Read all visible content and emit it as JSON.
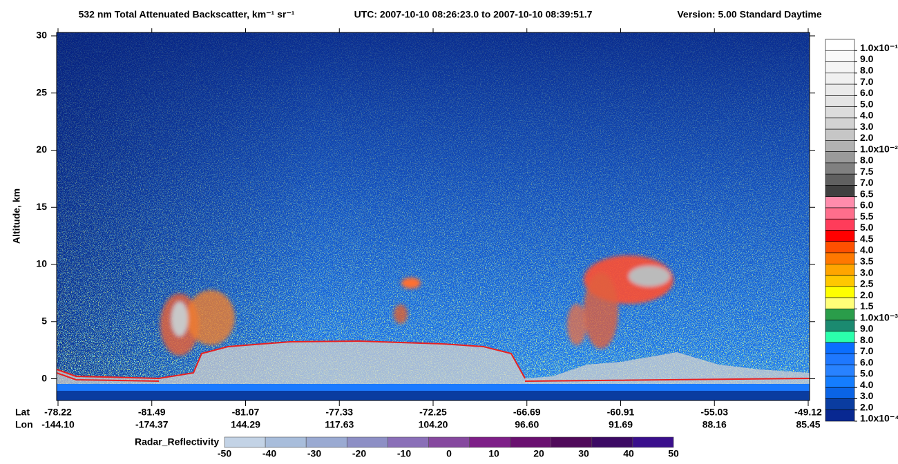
{
  "chart_data": {
    "type": "curtain",
    "title": "532 nm Total Attenuated Backscatter, km⁻¹ sr⁻¹",
    "time_range": "UTC:  2007-10-10 08:26:23.0  to  2007-10-10 08:39:51.7",
    "version": "Version: 5.00  Standard  Daytime",
    "ylabel": "Altitude, km",
    "ylim": [
      -1.9,
      30.3
    ],
    "yticks": [
      0,
      5,
      10,
      15,
      20,
      25,
      30
    ],
    "lat_label": "Lat",
    "lon_label": "Lon",
    "lat": [
      "-78.22",
      "-81.49",
      "-81.07",
      "-77.33",
      "-72.25",
      "-66.69",
      "-60.91",
      "-55.03",
      "-49.12"
    ],
    "lon": [
      "-144.10",
      "-174.37",
      "144.29",
      "117.63",
      "104.20",
      "96.60",
      "91.69",
      "88.16",
      "85.45"
    ],
    "colorbar": {
      "labels": [
        "1.0x10⁻¹",
        "9.0",
        "8.0",
        "7.0",
        "6.0",
        "5.0",
        "4.0",
        "3.0",
        "2.0",
        "1.0x10⁻²",
        "8.0",
        "7.5",
        "7.0",
        "6.5",
        "6.0",
        "5.5",
        "5.0",
        "4.5",
        "4.0",
        "3.5",
        "3.0",
        "2.5",
        "2.0",
        "1.5",
        "1.0x10⁻³",
        "9.0",
        "8.0",
        "7.0",
        "6.0",
        "5.0",
        "4.0",
        "3.0",
        "2.0",
        "1.0x10⁻⁴"
      ],
      "colors": [
        "#ffffff",
        "#fafafa",
        "#f5f5f5",
        "#f0f0f0",
        "#eaeaea",
        "#e4e4e4",
        "#dcdcdc",
        "#d2d2d2",
        "#c6c6c6",
        "#b2b2b2",
        "#9a9a9a",
        "#808080",
        "#606060",
        "#404040",
        "#ff8cac",
        "#ff6e8c",
        "#ff3c5a",
        "#ff0000",
        "#ff5000",
        "#ff7800",
        "#ffa500",
        "#ffc800",
        "#ffff00",
        "#ffff78",
        "#2a9d4a",
        "#1b8a70",
        "#2bffac",
        "#0a6eff",
        "#1e78ff",
        "#2882ff",
        "#147dff",
        "#0a64e6",
        "#0a3ca0",
        "#082891"
      ]
    },
    "radar_colorbar": {
      "label": "Radar_Reflectivity",
      "lim": [
        -50,
        50
      ],
      "ticks": [
        -50,
        -40,
        -30,
        -20,
        -10,
        0,
        10,
        20,
        30,
        40,
        50
      ],
      "colors": [
        "#c3d3e6",
        "#a8bddb",
        "#9aaad2",
        "#8d8fc5",
        "#8a6fb8",
        "#86489f",
        "#7e1f88",
        "#6a1070",
        "#500a5a",
        "#3c0a64",
        "#3a0f8c"
      ]
    }
  }
}
